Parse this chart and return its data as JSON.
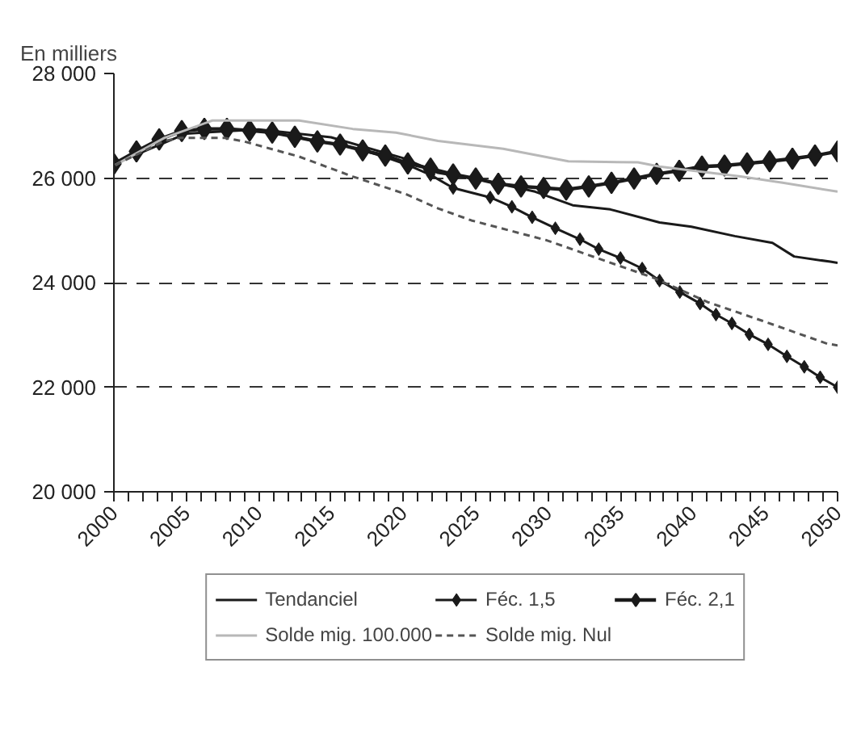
{
  "chart_data": {
    "type": "line",
    "ylabel": "En milliers",
    "xlim": [
      2000,
      2050
    ],
    "xticks": [
      2000,
      2005,
      2010,
      2015,
      2020,
      2025,
      2030,
      2035,
      2040,
      2045,
      2050
    ],
    "ylim": [
      20000,
      28000
    ],
    "yticks": [
      {
        "value": 20000,
        "label": "20 000"
      },
      {
        "value": 22000,
        "label": "22 000"
      },
      {
        "value": 24000,
        "label": "24 000"
      },
      {
        "value": 26000,
        "label": "26 000"
      },
      {
        "value": 28000,
        "label": "28 000"
      }
    ],
    "grid": "y",
    "legend": "bottom",
    "series": [
      {
        "name": "Tendanciel",
        "color": "#1a1a1a",
        "marker": "none",
        "line_style": "solid",
        "x": [
          2000,
          2005,
          2010,
          2015,
          2020,
          2022.4,
          2025.8,
          2029.1,
          2031.7,
          2034.3,
          2037.7,
          2039.9,
          2042.9,
          2045.5,
          2047.0,
          2049.5,
          2050
        ],
        "values": [
          26270,
          26850,
          26930,
          26780,
          26380,
          26100,
          25940,
          25740,
          25480,
          25400,
          25150,
          25070,
          24890,
          24760,
          24500,
          24400,
          24380
        ]
      },
      {
        "name": "Féc. 1,5",
        "color": "#1a1a1a",
        "marker": "diamond",
        "line_style": "solid",
        "x": [
          2000,
          2001.56,
          2003.13,
          2004.69,
          2006.25,
          2007.81,
          2009.38,
          2010.94,
          2012.5,
          2014.06,
          2015.63,
          2017.19,
          2018.75,
          2020.31,
          2021.88,
          2023.44,
          2026.0,
          2027.5,
          2028.9,
          2030.5,
          2032.2,
          2033.5,
          2035.0,
          2036.5,
          2037.7,
          2039.1,
          2040.5,
          2041.6,
          2042.7,
          2043.9,
          2045.2,
          2046.5,
          2047.7,
          2048.8,
          2050
        ],
        "values": [
          26270,
          26510,
          26740,
          26900,
          26940,
          26940,
          26910,
          26870,
          26790,
          26700,
          26640,
          26530,
          26400,
          26250,
          26060,
          25810,
          25630,
          25450,
          25250,
          25040,
          24830,
          24640,
          24470,
          24270,
          24040,
          23820,
          23600,
          23390,
          23220,
          23010,
          22820,
          22590,
          22390,
          22190,
          22000
        ]
      },
      {
        "name": "Féc. 2,1",
        "color": "#1a1a1a",
        "marker": "diamond",
        "line_style": "solid",
        "x": [
          2000,
          2001.56,
          2003.13,
          2004.69,
          2006.25,
          2007.81,
          2009.38,
          2010.94,
          2012.5,
          2014.06,
          2015.63,
          2017.19,
          2018.75,
          2020.31,
          2021.88,
          2023.44,
          2025.0,
          2026.56,
          2028.13,
          2029.69,
          2031.25,
          2032.81,
          2034.38,
          2035.94,
          2037.5,
          2039.06,
          2040.63,
          2042.19,
          2043.75,
          2045.31,
          2046.88,
          2048.44,
          2050
        ],
        "values": [
          26270,
          26510,
          26740,
          26900,
          26940,
          26940,
          26910,
          26870,
          26790,
          26700,
          26640,
          26530,
          26430,
          26280,
          26180,
          26070,
          25990,
          25890,
          25840,
          25810,
          25780,
          25840,
          25910,
          25990,
          26080,
          26140,
          26220,
          26240,
          26280,
          26320,
          26370,
          26430,
          26510
        ]
      },
      {
        "name": "Solde mig. 100.000",
        "color": "#b8b8b8",
        "marker": "none",
        "line_style": "solid",
        "x": [
          2000.1,
          2003.5,
          2006.8,
          2012.8,
          2016.5,
          2019.5,
          2022.4,
          2026.9,
          2031.4,
          2036.2,
          2037.7,
          2039.5,
          2043.3,
          2046.2,
          2050
        ],
        "values": [
          26250,
          26770,
          27100,
          27100,
          26940,
          26870,
          26710,
          26560,
          26320,
          26300,
          26220,
          26160,
          26030,
          25910,
          25740
        ]
      },
      {
        "name": "Solde mig. Nul",
        "color": "#555555",
        "marker": "none",
        "line_style": "dashed",
        "x": [
          2000.1,
          2003.5,
          2004.6,
          2007.6,
          2009.0,
          2012.8,
          2016.5,
          2020.2,
          2022.4,
          2024.7,
          2029.9,
          2033.6,
          2037.3,
          2041.0,
          2044.8,
          2049.3,
          2050
        ],
        "values": [
          26250,
          26710,
          26770,
          26770,
          26700,
          26410,
          26030,
          25690,
          25420,
          25190,
          24810,
          24450,
          24090,
          23630,
          23270,
          22830,
          22800
        ]
      }
    ]
  }
}
